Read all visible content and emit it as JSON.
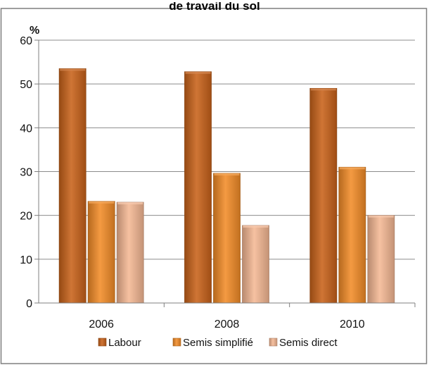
{
  "chart_data": {
    "type": "bar",
    "title": "de travail du sol",
    "xlabel": "",
    "ylabel": "%",
    "ylim": [
      0,
      60
    ],
    "yticks": [
      0,
      10,
      20,
      30,
      40,
      50,
      60
    ],
    "grid": true,
    "legend_position": "bottom",
    "categories": [
      "2006",
      "2008",
      "2010"
    ],
    "series": [
      {
        "name": "Labour",
        "values": [
          53.5,
          52.8,
          49.0
        ],
        "color": "#c8621a"
      },
      {
        "name": "Semis simplifié",
        "values": [
          23.2,
          29.6,
          31.0
        ],
        "color": "#f28c28"
      },
      {
        "name": "Semis direct",
        "values": [
          23.0,
          17.7,
          20.0
        ],
        "color": "#f5b894"
      }
    ]
  }
}
